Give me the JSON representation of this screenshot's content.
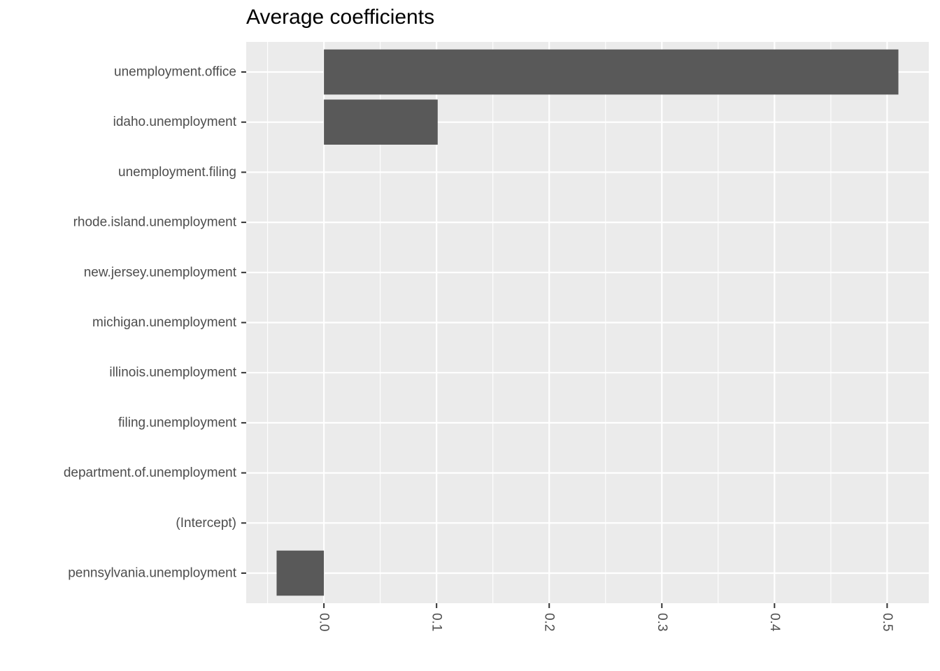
{
  "chart_data": {
    "type": "bar",
    "orientation": "horizontal",
    "title": "Average coefficients",
    "xlabel": "",
    "ylabel": "",
    "categories": [
      "unemployment.office",
      "idaho.unemployment",
      "unemployment.filing",
      "rhode.island.unemployment",
      "new.jersey.unemployment",
      "michigan.unemployment",
      "illinois.unemployment",
      "filing.unemployment",
      "department.of.unemployment",
      "(Intercept)",
      "pennsylvania.unemployment"
    ],
    "values": [
      0.51,
      0.101,
      0,
      0,
      0,
      0,
      0,
      0,
      0,
      0,
      -0.042
    ],
    "xlim": [
      -0.069,
      0.537
    ],
    "x_ticks": [
      0.0,
      0.1,
      0.2,
      0.3,
      0.4,
      0.5
    ],
    "x_tick_labels": [
      "0.0",
      "0.1",
      "0.2",
      "0.3",
      "0.4",
      "0.5"
    ],
    "grid": true,
    "colors": {
      "bar": "#595959",
      "panel_background": "#ebebeb",
      "grid_major": "#ffffff",
      "tick_text": "#4d4d4d"
    }
  }
}
